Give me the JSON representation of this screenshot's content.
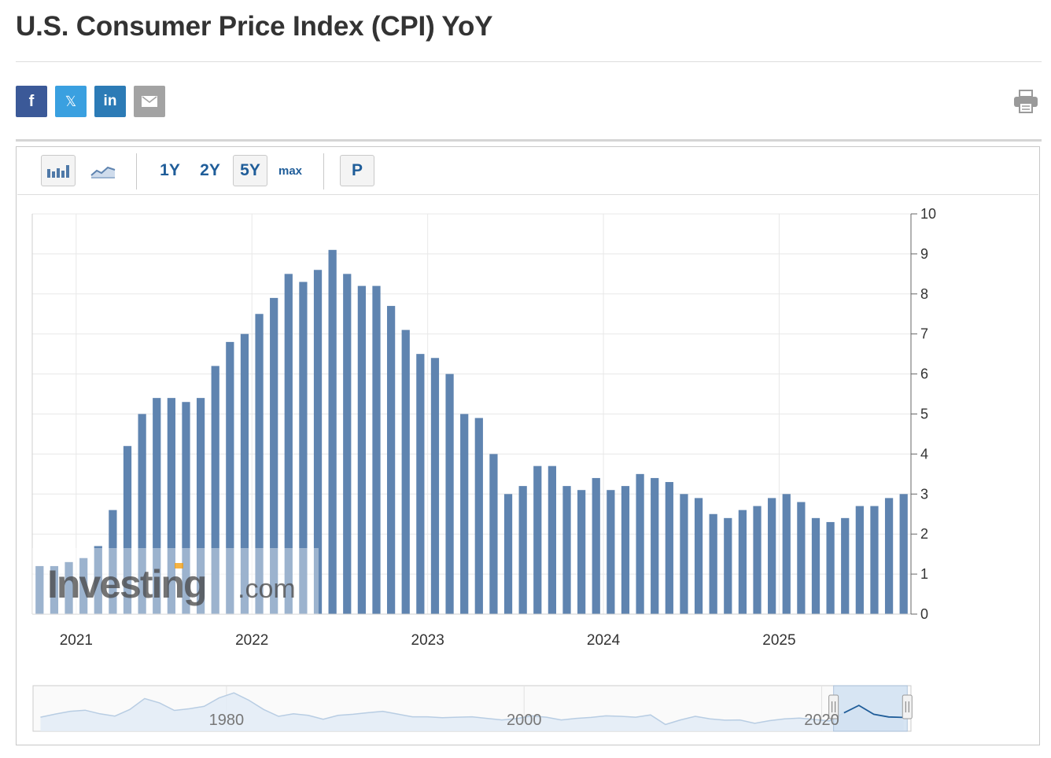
{
  "page": {
    "title": "U.S. Consumer Price Index (CPI) YoY"
  },
  "share": {
    "facebook_glyph": "f",
    "twitter_glyph": "𝕏",
    "linkedin_glyph": "in",
    "icons": [
      "facebook-icon",
      "twitter-icon",
      "linkedin-icon",
      "email-icon",
      "print-icon"
    ]
  },
  "toolbar": {
    "chart_type_icons": [
      "bar-chart-icon",
      "area-chart-icon"
    ],
    "ranges": [
      "1Y",
      "2Y",
      "5Y",
      "max"
    ],
    "active_range": "5Y",
    "p_label": "P"
  },
  "colors": {
    "bar": "#5f84b0",
    "navigator_line": "#1f5d99",
    "navigator_fill": "#cfe0f2"
  },
  "watermark": {
    "brand_main": "Investing",
    "brand_suffix": ".com"
  },
  "chart_data": {
    "type": "bar",
    "title": "U.S. Consumer Price Index (CPI) YoY",
    "x_start": "2020-10",
    "x_end": "2025-09",
    "x_ticks": [
      "2021",
      "2022",
      "2023",
      "2024",
      "2025"
    ],
    "ylim": [
      0,
      10
    ],
    "y_ticks": [
      "0",
      "1",
      "2",
      "3",
      "4",
      "5",
      "6",
      "7",
      "8",
      "9",
      "10"
    ],
    "y_axis_side": "right",
    "grid": true,
    "series": [
      {
        "x": [
          "2020-10",
          "2020-11",
          "2020-12",
          "2021-01",
          "2021-02",
          "2021-03",
          "2021-04",
          "2021-05",
          "2021-06",
          "2021-07",
          "2021-08",
          "2021-09",
          "2021-10",
          "2021-11",
          "2021-12",
          "2022-01",
          "2022-02",
          "2022-03",
          "2022-04",
          "2022-05",
          "2022-06",
          "2022-07",
          "2022-08",
          "2022-09",
          "2022-10",
          "2022-11",
          "2022-12",
          "2023-01",
          "2023-02",
          "2023-03",
          "2023-04",
          "2023-05",
          "2023-06",
          "2023-07",
          "2023-08",
          "2023-09",
          "2023-10",
          "2023-11",
          "2023-12",
          "2024-01",
          "2024-02",
          "2024-03",
          "2024-04",
          "2024-05",
          "2024-06",
          "2024-07",
          "2024-08",
          "2024-09",
          "2024-10",
          "2024-11",
          "2024-12",
          "2025-01",
          "2025-02",
          "2025-03",
          "2025-04",
          "2025-05",
          "2025-06",
          "2025-07",
          "2025-08",
          "2025-09"
        ],
        "values": [
          1.2,
          1.2,
          1.3,
          1.4,
          1.7,
          2.6,
          4.2,
          5.0,
          5.4,
          5.4,
          5.3,
          5.4,
          6.2,
          6.8,
          7.0,
          7.5,
          7.9,
          8.5,
          8.3,
          8.6,
          9.1,
          8.5,
          8.2,
          8.2,
          7.7,
          7.1,
          6.5,
          6.4,
          6.0,
          5.0,
          4.9,
          4.0,
          3.0,
          3.2,
          3.7,
          3.7,
          3.2,
          3.1,
          3.4,
          3.1,
          3.2,
          3.5,
          3.4,
          3.3,
          3.0,
          2.9,
          2.5,
          2.4,
          2.6,
          2.7,
          2.9,
          3.0,
          2.8,
          2.4,
          2.3,
          2.4,
          2.7,
          2.7,
          2.9,
          3.0
        ]
      }
    ],
    "navigator": {
      "type": "area",
      "x_ticks": [
        "1980",
        "2000",
        "2020"
      ],
      "x_range": [
        1967,
        2026
      ],
      "selected_range": [
        2020.8,
        2025.75
      ],
      "series": {
        "x": [
          1967,
          1968,
          1969,
          1970,
          1971,
          1972,
          1973,
          1974,
          1975,
          1976,
          1977,
          1978,
          1979,
          1980,
          1981,
          1982,
          1983,
          1984,
          1985,
          1986,
          1987,
          1988,
          1989,
          1990,
          1991,
          1992,
          1993,
          1994,
          1995,
          1996,
          1997,
          1998,
          1999,
          2000,
          2001,
          2002,
          2003,
          2004,
          2005,
          2006,
          2007,
          2008,
          2009,
          2010,
          2011,
          2012,
          2013,
          2014,
          2015,
          2016,
          2017,
          2018,
          2019,
          2020,
          2021,
          2022,
          2023,
          2024,
          2025
        ],
        "values": [
          2.8,
          4.2,
          5.4,
          5.9,
          4.3,
          3.3,
          6.2,
          11.0,
          9.1,
          5.8,
          6.5,
          7.6,
          11.3,
          13.5,
          10.3,
          6.2,
          3.2,
          4.3,
          3.6,
          1.9,
          3.6,
          4.1,
          4.8,
          5.4,
          4.2,
          3.0,
          3.0,
          2.6,
          2.8,
          3.0,
          2.3,
          1.6,
          2.2,
          3.4,
          2.8,
          1.6,
          2.3,
          2.7,
          3.4,
          3.2,
          2.8,
          3.8,
          -0.4,
          1.6,
          3.2,
          2.1,
          1.5,
          1.6,
          0.1,
          1.3,
          2.1,
          2.4,
          1.8,
          1.2,
          4.7,
          8.0,
          4.1,
          2.9,
          2.7
        ]
      }
    }
  }
}
